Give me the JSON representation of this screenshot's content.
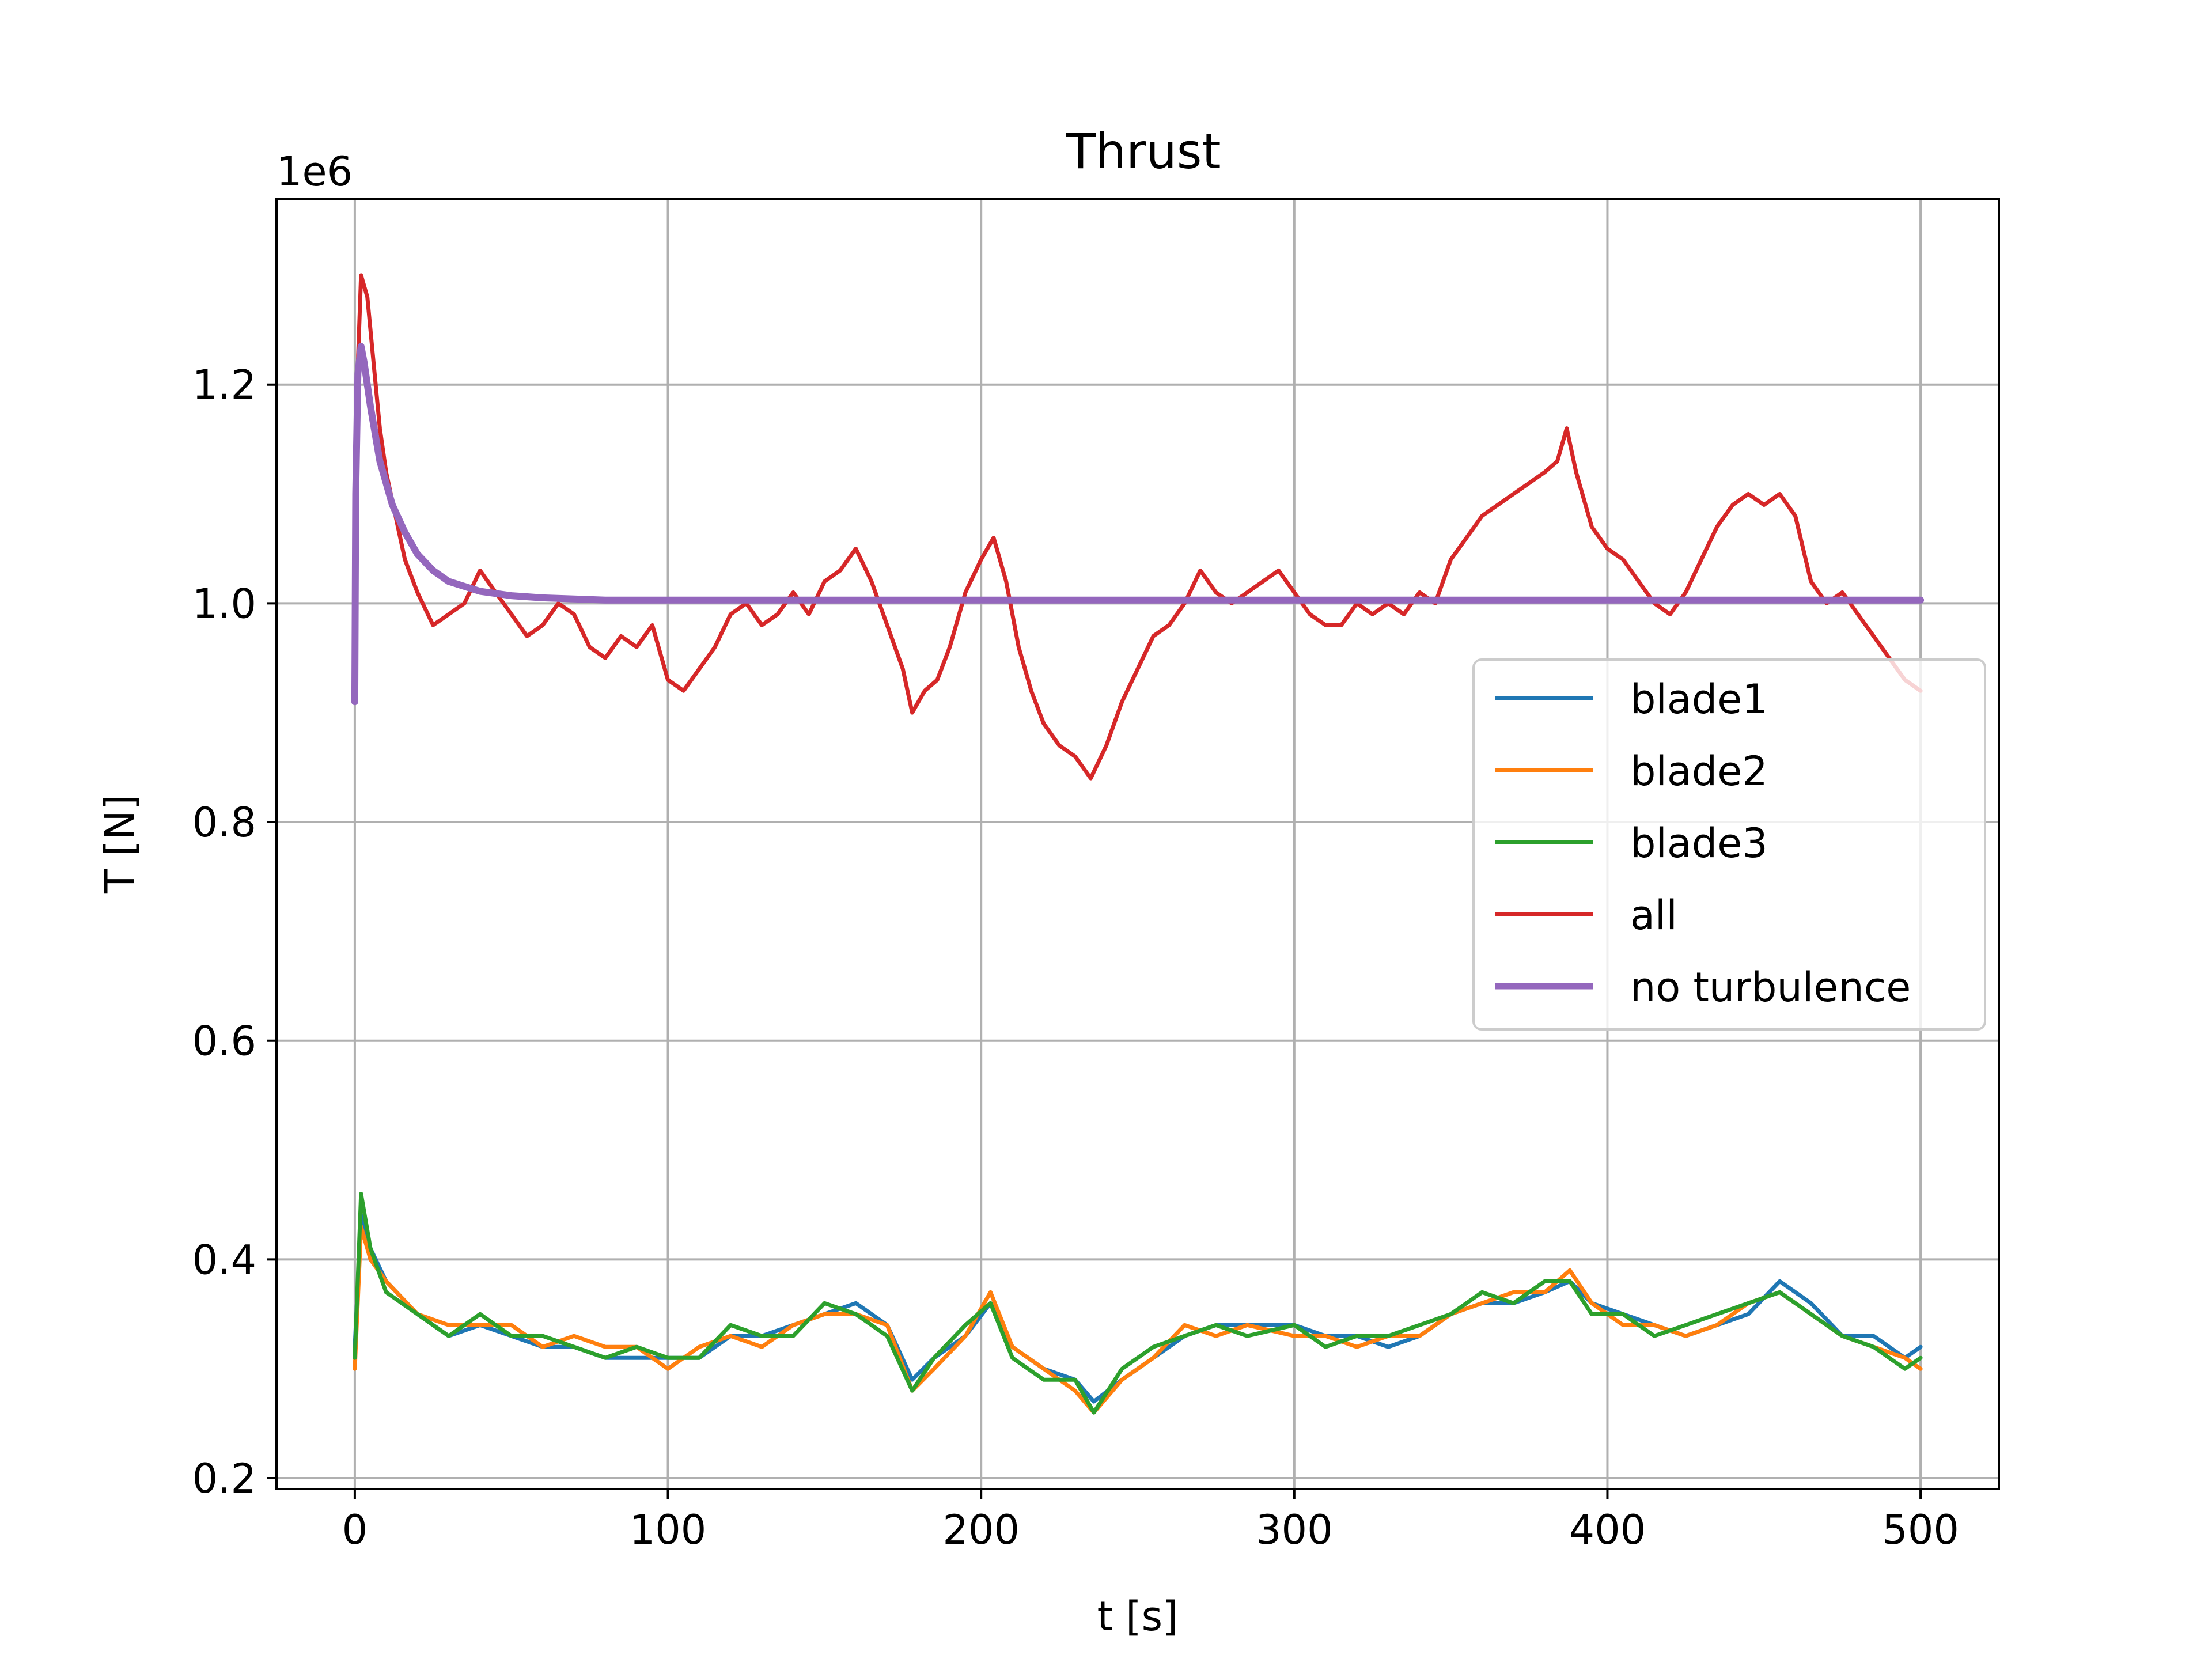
{
  "chart_data": {
    "type": "line",
    "title": "Thrust",
    "xlabel": "t [s]",
    "ylabel": "T [N]",
    "offset_label": "1e6",
    "xlim": [
      -25,
      525
    ],
    "ylim": [
      0.19,
      1.37
    ],
    "xticks": [
      0,
      100,
      200,
      300,
      400,
      500
    ],
    "xtick_labels": [
      "0",
      "100",
      "200",
      "300",
      "400",
      "500"
    ],
    "yticks": [
      0.2,
      0.4,
      0.6,
      0.8,
      1.0,
      1.2
    ],
    "ytick_labels": [
      "0.2",
      "0.4",
      "0.6",
      "0.8",
      "1.0",
      "1.2"
    ],
    "grid": true,
    "legend_position": "center-right",
    "series": [
      {
        "name": "blade1",
        "color": "#1f77b4",
        "x": [
          0,
          2,
          5,
          10,
          20,
          30,
          40,
          50,
          60,
          70,
          80,
          90,
          100,
          110,
          120,
          130,
          140,
          150,
          160,
          170,
          178,
          185,
          195,
          203,
          210,
          220,
          230,
          236,
          245,
          255,
          265,
          275,
          285,
          300,
          310,
          320,
          330,
          340,
          350,
          360,
          370,
          380,
          388,
          395,
          405,
          415,
          425,
          435,
          445,
          455,
          465,
          475,
          485,
          495,
          500
        ],
        "y": [
          0.32,
          0.44,
          0.41,
          0.38,
          0.35,
          0.33,
          0.34,
          0.33,
          0.32,
          0.32,
          0.31,
          0.31,
          0.31,
          0.31,
          0.33,
          0.33,
          0.34,
          0.35,
          0.36,
          0.34,
          0.29,
          0.31,
          0.33,
          0.36,
          0.32,
          0.3,
          0.29,
          0.27,
          0.29,
          0.31,
          0.33,
          0.34,
          0.34,
          0.34,
          0.33,
          0.33,
          0.32,
          0.33,
          0.35,
          0.36,
          0.36,
          0.37,
          0.38,
          0.36,
          0.35,
          0.34,
          0.33,
          0.34,
          0.35,
          0.38,
          0.36,
          0.33,
          0.33,
          0.31,
          0.32
        ]
      },
      {
        "name": "blade2",
        "color": "#ff7f0e",
        "x": [
          0,
          2,
          5,
          10,
          20,
          30,
          40,
          50,
          60,
          70,
          80,
          90,
          100,
          110,
          120,
          130,
          140,
          150,
          160,
          170,
          178,
          185,
          195,
          203,
          210,
          220,
          230,
          236,
          245,
          255,
          265,
          275,
          285,
          300,
          310,
          320,
          330,
          340,
          350,
          360,
          370,
          380,
          388,
          395,
          405,
          415,
          425,
          435,
          445,
          455,
          465,
          475,
          485,
          495,
          500
        ],
        "y": [
          0.3,
          0.43,
          0.4,
          0.38,
          0.35,
          0.34,
          0.34,
          0.34,
          0.32,
          0.33,
          0.32,
          0.32,
          0.3,
          0.32,
          0.33,
          0.32,
          0.34,
          0.35,
          0.35,
          0.34,
          0.28,
          0.3,
          0.33,
          0.37,
          0.32,
          0.3,
          0.28,
          0.26,
          0.29,
          0.31,
          0.34,
          0.33,
          0.34,
          0.33,
          0.33,
          0.32,
          0.33,
          0.33,
          0.35,
          0.36,
          0.37,
          0.37,
          0.39,
          0.36,
          0.34,
          0.34,
          0.33,
          0.34,
          0.36,
          0.37,
          0.35,
          0.33,
          0.32,
          0.31,
          0.3
        ]
      },
      {
        "name": "blade3",
        "color": "#2ca02c",
        "x": [
          0,
          2,
          5,
          10,
          20,
          30,
          40,
          50,
          60,
          70,
          80,
          90,
          100,
          110,
          120,
          130,
          140,
          150,
          160,
          170,
          178,
          185,
          195,
          203,
          210,
          220,
          230,
          236,
          245,
          255,
          265,
          275,
          285,
          300,
          310,
          320,
          330,
          340,
          350,
          360,
          370,
          380,
          388,
          395,
          405,
          415,
          425,
          435,
          445,
          455,
          465,
          475,
          485,
          495,
          500
        ],
        "y": [
          0.31,
          0.46,
          0.41,
          0.37,
          0.35,
          0.33,
          0.35,
          0.33,
          0.33,
          0.32,
          0.31,
          0.32,
          0.31,
          0.31,
          0.34,
          0.33,
          0.33,
          0.36,
          0.35,
          0.33,
          0.28,
          0.31,
          0.34,
          0.36,
          0.31,
          0.29,
          0.29,
          0.26,
          0.3,
          0.32,
          0.33,
          0.34,
          0.33,
          0.34,
          0.32,
          0.33,
          0.33,
          0.34,
          0.35,
          0.37,
          0.36,
          0.38,
          0.38,
          0.35,
          0.35,
          0.33,
          0.34,
          0.35,
          0.36,
          0.37,
          0.35,
          0.33,
          0.32,
          0.3,
          0.31
        ]
      },
      {
        "name": "all",
        "color": "#d62728",
        "x": [
          0,
          1,
          2,
          4,
          6,
          8,
          10,
          13,
          16,
          20,
          25,
          30,
          35,
          40,
          45,
          50,
          55,
          60,
          65,
          70,
          75,
          80,
          85,
          90,
          95,
          100,
          105,
          110,
          115,
          120,
          125,
          130,
          135,
          140,
          145,
          150,
          155,
          160,
          165,
          170,
          175,
          178,
          182,
          186,
          190,
          195,
          200,
          204,
          208,
          212,
          216,
          220,
          225,
          230,
          235,
          240,
          245,
          250,
          255,
          260,
          265,
          270,
          275,
          280,
          285,
          290,
          295,
          300,
          305,
          310,
          315,
          320,
          325,
          330,
          335,
          340,
          345,
          350,
          355,
          360,
          365,
          370,
          375,
          380,
          384,
          387,
          390,
          395,
          400,
          405,
          410,
          415,
          420,
          425,
          430,
          435,
          440,
          445,
          450,
          455,
          460,
          465,
          470,
          475,
          480,
          485,
          490,
          495,
          500
        ],
        "y": [
          0.95,
          1.22,
          1.3,
          1.28,
          1.22,
          1.16,
          1.12,
          1.08,
          1.04,
          1.01,
          0.98,
          0.99,
          1.0,
          1.03,
          1.01,
          0.99,
          0.97,
          0.98,
          1.0,
          0.99,
          0.96,
          0.95,
          0.97,
          0.96,
          0.98,
          0.93,
          0.92,
          0.94,
          0.96,
          0.99,
          1.0,
          0.98,
          0.99,
          1.01,
          0.99,
          1.02,
          1.03,
          1.05,
          1.02,
          0.98,
          0.94,
          0.9,
          0.92,
          0.93,
          0.96,
          1.01,
          1.04,
          1.06,
          1.02,
          0.96,
          0.92,
          0.89,
          0.87,
          0.86,
          0.84,
          0.87,
          0.91,
          0.94,
          0.97,
          0.98,
          1.0,
          1.03,
          1.01,
          1.0,
          1.01,
          1.02,
          1.03,
          1.01,
          0.99,
          0.98,
          0.98,
          1.0,
          0.99,
          1.0,
          0.99,
          1.01,
          1.0,
          1.04,
          1.06,
          1.08,
          1.09,
          1.1,
          1.11,
          1.12,
          1.13,
          1.16,
          1.12,
          1.07,
          1.05,
          1.04,
          1.02,
          1.0,
          0.99,
          1.01,
          1.04,
          1.07,
          1.09,
          1.1,
          1.09,
          1.1,
          1.08,
          1.02,
          1.0,
          1.01,
          0.99,
          0.97,
          0.95,
          0.93,
          0.92
        ]
      },
      {
        "name": "no turbulence",
        "color": "#9467bd",
        "x": [
          0,
          0.3,
          1,
          2,
          3,
          5,
          8,
          12,
          16,
          20,
          25,
          30,
          40,
          50,
          60,
          70,
          80,
          100,
          120,
          150,
          200,
          250,
          300,
          350,
          400,
          450,
          500
        ],
        "y": [
          0.91,
          1.1,
          1.21,
          1.235,
          1.22,
          1.18,
          1.13,
          1.09,
          1.065,
          1.045,
          1.03,
          1.02,
          1.011,
          1.007,
          1.005,
          1.004,
          1.003,
          1.003,
          1.003,
          1.003,
          1.003,
          1.003,
          1.003,
          1.003,
          1.003,
          1.003,
          1.003
        ]
      }
    ]
  }
}
